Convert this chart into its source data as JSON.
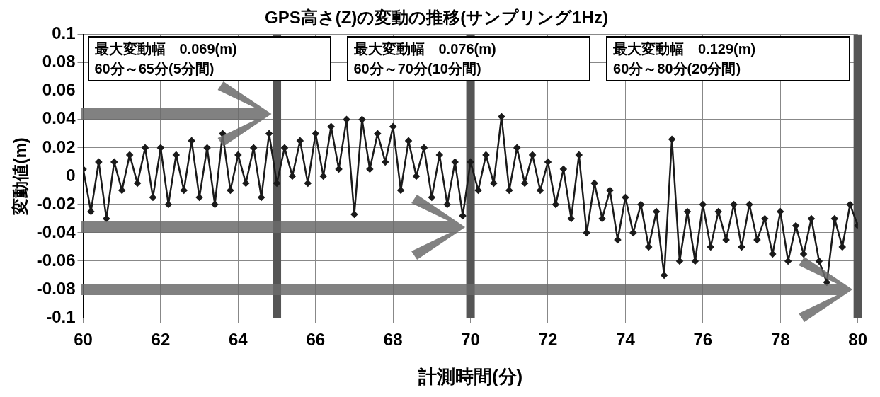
{
  "chart_data": {
    "type": "line",
    "title": "GPS高さ(Z)の変動の推移(サンプリング1Hz)",
    "xlabel": "計測時間(分)",
    "ylabel": "変動値(m)",
    "annotations": [
      "最大変動幅　0.069(m)",
      "60分～65分(5分間)",
      "最大変動幅　0.076(m)",
      "60分～70分(10分間)",
      "最大変動幅　0.129(m)",
      "60分～80分(20分間)"
    ],
    "x": [
      60,
      60.2,
      60.4,
      60.6,
      60.8,
      61,
      61.2,
      61.4,
      61.6,
      61.8,
      62,
      62.2,
      62.4,
      62.6,
      62.8,
      63,
      63.2,
      63.4,
      63.6,
      63.8,
      64,
      64.2,
      64.4,
      64.6,
      64.8,
      65,
      65.2,
      65.4,
      65.6,
      65.8,
      66,
      66.2,
      66.4,
      66.6,
      66.8,
      67,
      67.2,
      67.4,
      67.6,
      67.8,
      68,
      68.2,
      68.4,
      68.6,
      68.8,
      69,
      69.2,
      69.4,
      69.6,
      69.8,
      70,
      70.2,
      70.4,
      70.6,
      70.8,
      71,
      71.2,
      71.4,
      71.6,
      71.8,
      72,
      72.2,
      72.4,
      72.6,
      72.8,
      73,
      73.2,
      73.4,
      73.6,
      73.8,
      74,
      74.2,
      74.4,
      74.6,
      74.8,
      75,
      75.2,
      75.4,
      75.6,
      75.8,
      76,
      76.2,
      76.4,
      76.6,
      76.8,
      77,
      77.2,
      77.4,
      77.6,
      77.8,
      78,
      78.2,
      78.4,
      78.6,
      78.8,
      79,
      79.2,
      79.4,
      79.6,
      79.8,
      80
    ],
    "series": [
      {
        "color": "#1a1a1a",
        "values": [
          0.005,
          -0.025,
          0.01,
          -0.03,
          0.01,
          -0.01,
          0.015,
          -0.005,
          0.02,
          -0.015,
          0.02,
          -0.02,
          0.015,
          -0.01,
          0.025,
          -0.015,
          0.02,
          -0.02,
          0.03,
          -0.01,
          0.015,
          -0.005,
          0.02,
          -0.015,
          0.03,
          -0.005,
          0.02,
          0,
          0.025,
          -0.005,
          0.03,
          0,
          0.035,
          0.005,
          0.04,
          -0.027,
          0.04,
          0.005,
          0.03,
          0.01,
          0.035,
          -0.01,
          0.025,
          0,
          0.02,
          -0.015,
          0.015,
          -0.02,
          0.01,
          -0.028,
          0.01,
          -0.01,
          0.015,
          -0.005,
          0.042,
          -0.01,
          0.02,
          -0.005,
          0.015,
          -0.01,
          0.01,
          -0.02,
          0.005,
          -0.03,
          0.015,
          -0.04,
          -0.005,
          -0.03,
          -0.01,
          -0.045,
          -0.015,
          -0.04,
          -0.02,
          -0.05,
          -0.025,
          -0.07,
          0.026,
          -0.06,
          -0.025,
          -0.06,
          -0.02,
          -0.05,
          -0.025,
          -0.045,
          -0.02,
          -0.05,
          -0.02,
          -0.045,
          -0.03,
          -0.055,
          -0.025,
          -0.06,
          -0.035,
          -0.055,
          -0.03,
          -0.06,
          -0.075,
          -0.03,
          -0.05,
          -0.02,
          -0.035
        ]
      }
    ],
    "xlim": [
      60,
      80
    ],
    "xticks": [
      60,
      62,
      64,
      66,
      68,
      70,
      72,
      74,
      76,
      78,
      80
    ],
    "ylim": [
      -0.1,
      0.1
    ],
    "yticks": [
      -0.1,
      -0.08,
      -0.06,
      -0.04,
      -0.02,
      0,
      0.02,
      0.04,
      0.06,
      0.08,
      0.1
    ],
    "ref_lines": [
      {
        "axis": "x",
        "value": 65,
        "color": "#555555"
      },
      {
        "axis": "x",
        "value": 70,
        "color": "#555555"
      },
      {
        "axis": "x",
        "value": 80,
        "color": "#555555"
      }
    ],
    "grid": true,
    "legend": false,
    "marker": "diamond",
    "line_style": "solid"
  }
}
